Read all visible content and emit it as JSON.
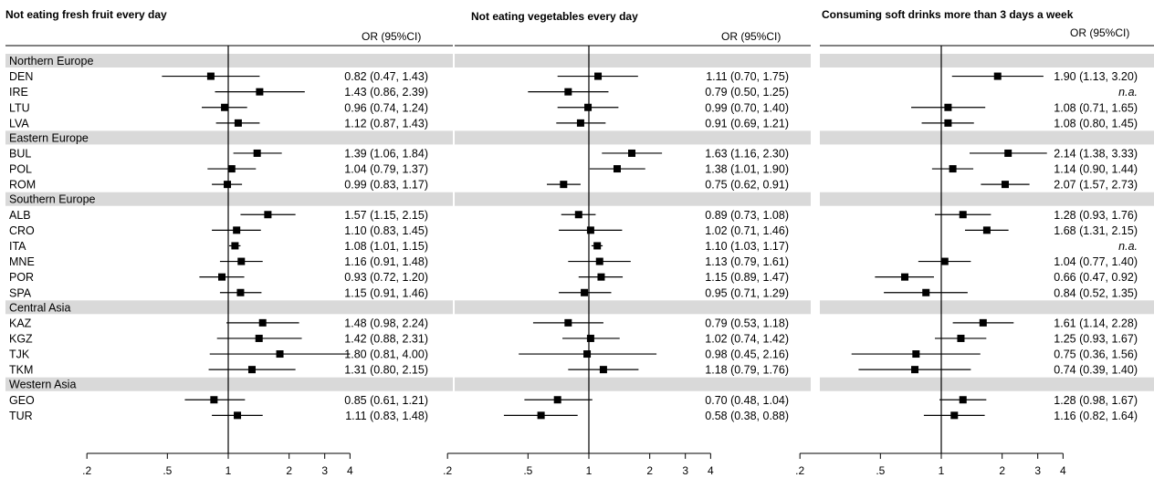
{
  "chart_data": {
    "type": "forest",
    "column_header": "OR (95%CI)",
    "x_scale": "log",
    "reference_line": 1,
    "x_ticks": [
      0.2,
      0.5,
      1,
      2,
      3,
      4
    ],
    "x_tick_labels": [
      ".2",
      ".5",
      "1",
      "2",
      "3",
      "4"
    ],
    "groups": [
      {
        "name": "Northern Europe",
        "countries": [
          "DEN",
          "IRE",
          "LTU",
          "LVA"
        ]
      },
      {
        "name": "Eastern Europe",
        "countries": [
          "BUL",
          "POL",
          "ROM"
        ]
      },
      {
        "name": "Southern Europe",
        "countries": [
          "ALB",
          "CRO",
          "ITA",
          "MNE",
          "POR",
          "SPA"
        ]
      },
      {
        "name": "Central Asia",
        "countries": [
          "KAZ",
          "KGZ",
          "TJK",
          "TKM"
        ]
      },
      {
        "name": "Western Asia",
        "countries": [
          "GEO",
          "TUR"
        ]
      }
    ],
    "panels": [
      {
        "title": "Not eating fresh fruit every day",
        "rows": [
          {
            "country": "DEN",
            "or": 0.82,
            "lo": 0.47,
            "hi": 1.43,
            "label": "0.82 (0.47, 1.43)"
          },
          {
            "country": "IRE",
            "or": 1.43,
            "lo": 0.86,
            "hi": 2.39,
            "label": "1.43 (0.86, 2.39)"
          },
          {
            "country": "LTU",
            "or": 0.96,
            "lo": 0.74,
            "hi": 1.24,
            "label": "0.96 (0.74, 1.24)"
          },
          {
            "country": "LVA",
            "or": 1.12,
            "lo": 0.87,
            "hi": 1.43,
            "label": "1.12 (0.87, 1.43)"
          },
          {
            "country": "BUL",
            "or": 1.39,
            "lo": 1.06,
            "hi": 1.84,
            "label": "1.39 (1.06, 1.84)"
          },
          {
            "country": "POL",
            "or": 1.04,
            "lo": 0.79,
            "hi": 1.37,
            "label": "1.04 (0.79, 1.37)"
          },
          {
            "country": "ROM",
            "or": 0.99,
            "lo": 0.83,
            "hi": 1.17,
            "label": "0.99 (0.83, 1.17)"
          },
          {
            "country": "ALB",
            "or": 1.57,
            "lo": 1.15,
            "hi": 2.15,
            "label": "1.57 (1.15, 2.15)"
          },
          {
            "country": "CRO",
            "or": 1.1,
            "lo": 0.83,
            "hi": 1.45,
            "label": "1.10 (0.83, 1.45)"
          },
          {
            "country": "ITA",
            "or": 1.08,
            "lo": 1.01,
            "hi": 1.15,
            "label": "1.08 (1.01, 1.15)"
          },
          {
            "country": "MNE",
            "or": 1.16,
            "lo": 0.91,
            "hi": 1.48,
            "label": "1.16 (0.91, 1.48)"
          },
          {
            "country": "POR",
            "or": 0.93,
            "lo": 0.72,
            "hi": 1.2,
            "label": "0.93 (0.72, 1.20)"
          },
          {
            "country": "SPA",
            "or": 1.15,
            "lo": 0.91,
            "hi": 1.46,
            "label": "1.15 (0.91, 1.46)"
          },
          {
            "country": "KAZ",
            "or": 1.48,
            "lo": 0.98,
            "hi": 2.24,
            "label": "1.48 (0.98, 2.24)"
          },
          {
            "country": "KGZ",
            "or": 1.42,
            "lo": 0.88,
            "hi": 2.31,
            "label": "1.42 (0.88, 2.31)"
          },
          {
            "country": "TJK",
            "or": 1.8,
            "lo": 0.81,
            "hi": 4.0,
            "label": "1.80 (0.81, 4.00)"
          },
          {
            "country": "TKM",
            "or": 1.31,
            "lo": 0.8,
            "hi": 2.15,
            "label": "1.31 (0.80, 2.15)"
          },
          {
            "country": "GEO",
            "or": 0.85,
            "lo": 0.61,
            "hi": 1.21,
            "label": "0.85 (0.61, 1.21)"
          },
          {
            "country": "TUR",
            "or": 1.11,
            "lo": 0.83,
            "hi": 1.48,
            "label": "1.11 (0.83, 1.48)"
          }
        ]
      },
      {
        "title": "Not eating vegetables every day",
        "rows": [
          {
            "country": "DEN",
            "or": 1.11,
            "lo": 0.7,
            "hi": 1.75,
            "label": "1.11 (0.70, 1.75)"
          },
          {
            "country": "IRE",
            "or": 0.79,
            "lo": 0.5,
            "hi": 1.25,
            "label": "0.79 (0.50, 1.25)"
          },
          {
            "country": "LTU",
            "or": 0.99,
            "lo": 0.7,
            "hi": 1.4,
            "label": "0.99 (0.70, 1.40)"
          },
          {
            "country": "LVA",
            "or": 0.91,
            "lo": 0.69,
            "hi": 1.21,
            "label": "0.91 (0.69, 1.21)"
          },
          {
            "country": "BUL",
            "or": 1.63,
            "lo": 1.16,
            "hi": 2.3,
            "label": "1.63 (1.16, 2.30)"
          },
          {
            "country": "POL",
            "or": 1.38,
            "lo": 1.01,
            "hi": 1.9,
            "label": "1.38 (1.01, 1.90)"
          },
          {
            "country": "ROM",
            "or": 0.75,
            "lo": 0.62,
            "hi": 0.91,
            "label": "0.75 (0.62, 0.91)"
          },
          {
            "country": "ALB",
            "or": 0.89,
            "lo": 0.73,
            "hi": 1.08,
            "label": "0.89 (0.73, 1.08)"
          },
          {
            "country": "CRO",
            "or": 1.02,
            "lo": 0.71,
            "hi": 1.46,
            "label": "1.02 (0.71, 1.46)"
          },
          {
            "country": "ITA",
            "or": 1.1,
            "lo": 1.03,
            "hi": 1.17,
            "label": "1.10 (1.03, 1.17)"
          },
          {
            "country": "MNE",
            "or": 1.13,
            "lo": 0.79,
            "hi": 1.61,
            "label": "1.13 (0.79, 1.61)"
          },
          {
            "country": "POR",
            "or": 1.15,
            "lo": 0.89,
            "hi": 1.47,
            "label": "1.15 (0.89, 1.47)"
          },
          {
            "country": "SPA",
            "or": 0.95,
            "lo": 0.71,
            "hi": 1.29,
            "label": "0.95 (0.71, 1.29)"
          },
          {
            "country": "KAZ",
            "or": 0.79,
            "lo": 0.53,
            "hi": 1.18,
            "label": "0.79 (0.53, 1.18)"
          },
          {
            "country": "KGZ",
            "or": 1.02,
            "lo": 0.74,
            "hi": 1.42,
            "label": "1.02 (0.74, 1.42)"
          },
          {
            "country": "TJK",
            "or": 0.98,
            "lo": 0.45,
            "hi": 2.16,
            "label": "0.98 (0.45, 2.16)"
          },
          {
            "country": "TKM",
            "or": 1.18,
            "lo": 0.79,
            "hi": 1.76,
            "label": "1.18 (0.79, 1.76)"
          },
          {
            "country": "GEO",
            "or": 0.7,
            "lo": 0.48,
            "hi": 1.04,
            "label": "0.70 (0.48, 1.04)"
          },
          {
            "country": "TUR",
            "or": 0.58,
            "lo": 0.38,
            "hi": 0.88,
            "label": "0.58 (0.38, 0.88)"
          }
        ]
      },
      {
        "title": "Consuming soft drinks more than 3 days a week",
        "rows": [
          {
            "country": "DEN",
            "or": 1.9,
            "lo": 1.13,
            "hi": 3.2,
            "label": "1.90 (1.13, 3.20)"
          },
          {
            "country": "IRE",
            "or": null,
            "lo": null,
            "hi": null,
            "label": "n.a."
          },
          {
            "country": "LTU",
            "or": 1.08,
            "lo": 0.71,
            "hi": 1.65,
            "label": "1.08 (0.71, 1.65)"
          },
          {
            "country": "LVA",
            "or": 1.08,
            "lo": 0.8,
            "hi": 1.45,
            "label": "1.08 (0.80, 1.45)"
          },
          {
            "country": "BUL",
            "or": 2.14,
            "lo": 1.38,
            "hi": 3.33,
            "label": "2.14 (1.38, 3.33)"
          },
          {
            "country": "POL",
            "or": 1.14,
            "lo": 0.9,
            "hi": 1.44,
            "label": "1.14 (0.90, 1.44)"
          },
          {
            "country": "ROM",
            "or": 2.07,
            "lo": 1.57,
            "hi": 2.73,
            "label": "2.07 (1.57, 2.73)"
          },
          {
            "country": "ALB",
            "or": 1.28,
            "lo": 0.93,
            "hi": 1.76,
            "label": "1.28 (0.93, 1.76)"
          },
          {
            "country": "CRO",
            "or": 1.68,
            "lo": 1.31,
            "hi": 2.15,
            "label": "1.68 (1.31, 2.15)"
          },
          {
            "country": "ITA",
            "or": null,
            "lo": null,
            "hi": null,
            "label": "n.a."
          },
          {
            "country": "MNE",
            "or": 1.04,
            "lo": 0.77,
            "hi": 1.4,
            "label": "1.04 (0.77, 1.40)"
          },
          {
            "country": "POR",
            "or": 0.66,
            "lo": 0.47,
            "hi": 0.92,
            "label": "0.66 (0.47, 0.92)"
          },
          {
            "country": "SPA",
            "or": 0.84,
            "lo": 0.52,
            "hi": 1.35,
            "label": "0.84 (0.52, 1.35)"
          },
          {
            "country": "KAZ",
            "or": 1.61,
            "lo": 1.14,
            "hi": 2.28,
            "label": "1.61 (1.14, 2.28)"
          },
          {
            "country": "KGZ",
            "or": 1.25,
            "lo": 0.93,
            "hi": 1.67,
            "label": "1.25 (0.93, 1.67)"
          },
          {
            "country": "TJK",
            "or": 0.75,
            "lo": 0.36,
            "hi": 1.56,
            "label": "0.75 (0.36, 1.56)"
          },
          {
            "country": "TKM",
            "or": 0.74,
            "lo": 0.39,
            "hi": 1.4,
            "label": "0.74 (0.39, 1.40)"
          },
          {
            "country": "GEO",
            "or": 1.28,
            "lo": 0.98,
            "hi": 1.67,
            "label": "1.28 (0.98, 1.67)"
          },
          {
            "country": "TUR",
            "or": 1.16,
            "lo": 0.82,
            "hi": 1.64,
            "label": "1.16 (0.82, 1.64)"
          }
        ]
      }
    ]
  }
}
